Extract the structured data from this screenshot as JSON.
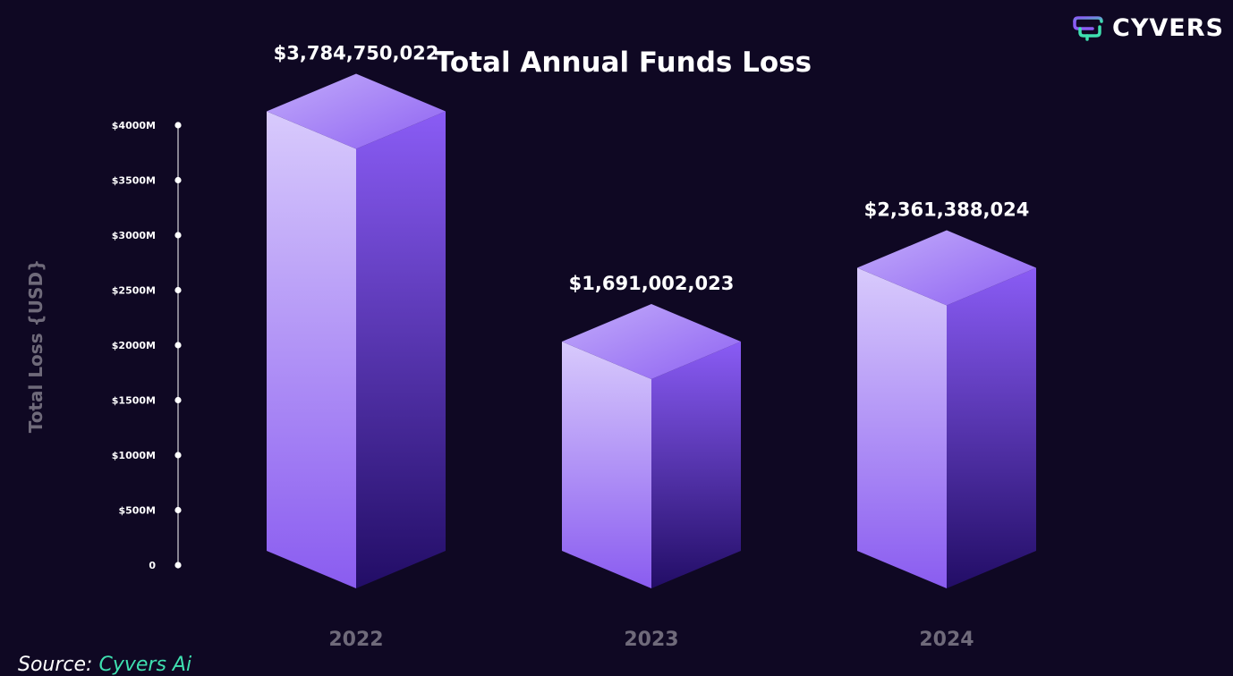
{
  "brand": {
    "name": "CYVERS",
    "logo_icon": "cyvers-logo-icon"
  },
  "source": {
    "prefix": "Source:",
    "name": "Cyvers Ai"
  },
  "colors": {
    "background": "#0f0823",
    "bar_front_top": "#d8cafc",
    "bar_front_bottom": "#8a5cf0",
    "bar_side_top": "#8a5cf5",
    "bar_side_bottom": "#220d66",
    "bar_top_light": "#c2abfa",
    "bar_top_dark": "#8e62f2",
    "axis_label": "#6f6a7a",
    "source_link": "#3fe0b0"
  },
  "chart_data": {
    "type": "bar",
    "title": "Total Annual Funds Loss",
    "xlabel": "",
    "ylabel": "Total Loss {USD}",
    "categories": [
      "2022",
      "2023",
      "2024"
    ],
    "values": [
      3784750022,
      1691002023,
      2361388024
    ],
    "value_labels": [
      "$3,784,750,022",
      "$1,691,002,023",
      "$2,361,388,024"
    ],
    "ylim": [
      0,
      4000000000
    ],
    "yticks": [
      0,
      500000000,
      1000000000,
      1500000000,
      2000000000,
      2500000000,
      3000000000,
      3500000000,
      4000000000
    ],
    "ytick_labels": [
      "0",
      "$500M",
      "$1000M",
      "$1500M",
      "$2000M",
      "$2500M",
      "$3000M",
      "$3500M",
      "$4000M"
    ],
    "grid": false,
    "style": "3d-isometric-bars"
  }
}
